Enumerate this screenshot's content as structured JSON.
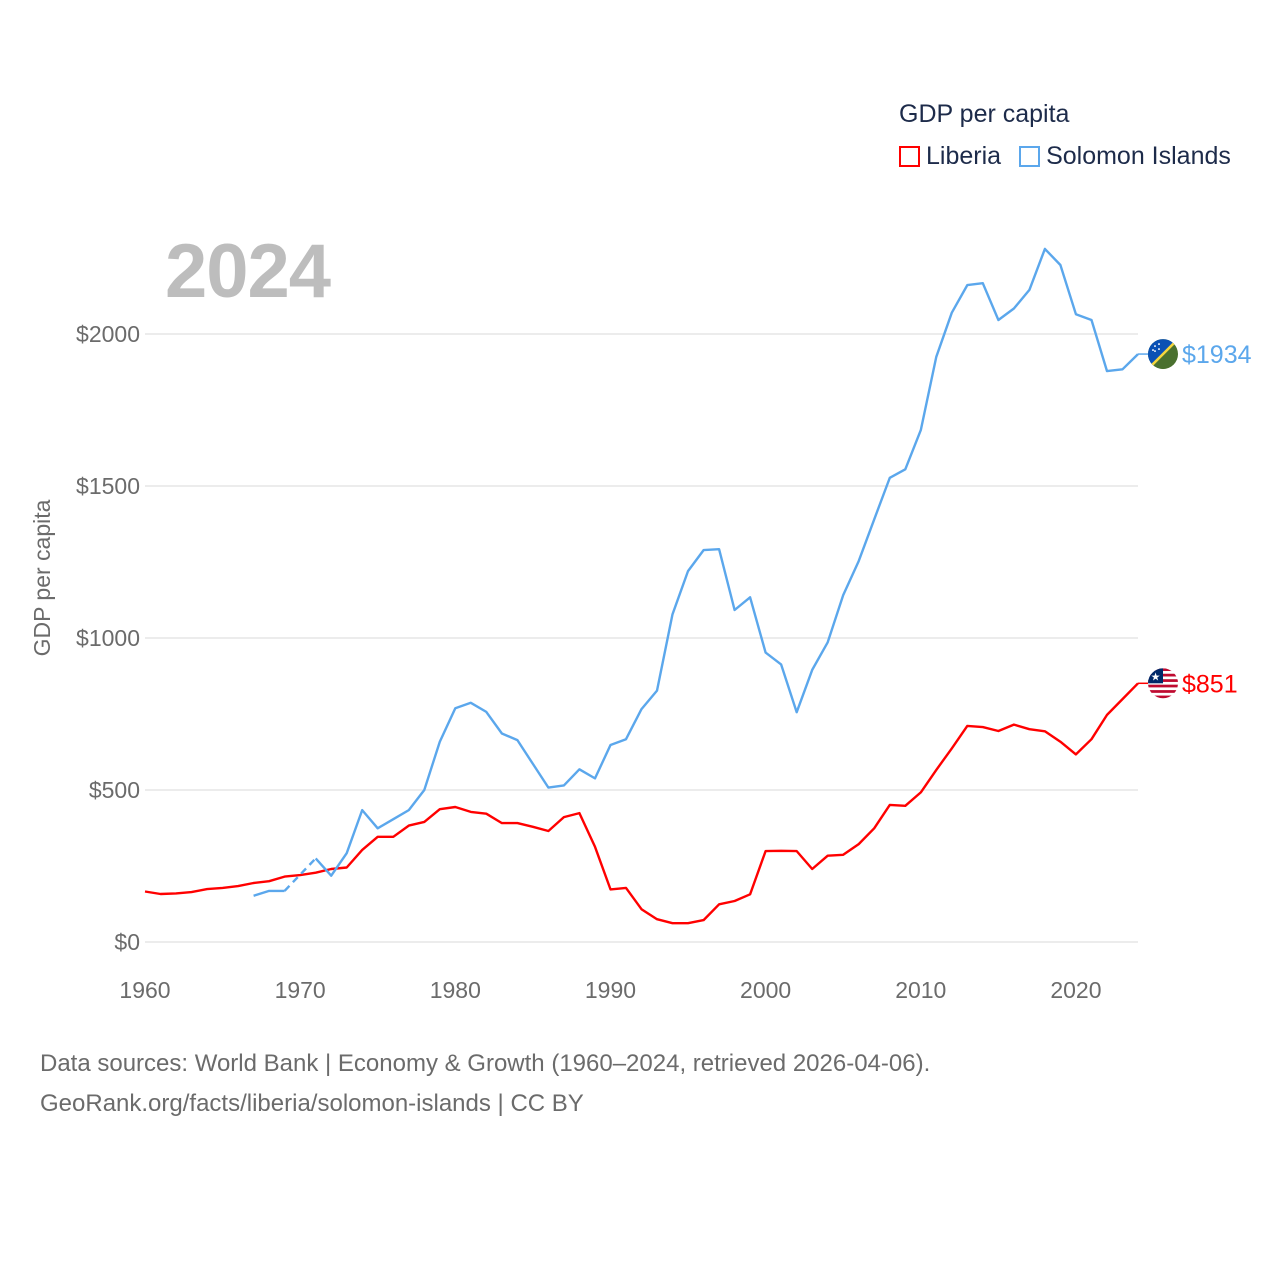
{
  "chart_data": {
    "type": "line",
    "title": "GDP per capita",
    "ylabel": "GDP per capita",
    "xlabel": "",
    "xlim": [
      1960,
      2024
    ],
    "ylim": [
      0,
      2000
    ],
    "grid": true,
    "legend_placement": "top-right",
    "x_ticks": [
      1960,
      1970,
      1980,
      1990,
      2000,
      2010,
      2020
    ],
    "x_tick_labels": [
      "1960",
      "1970",
      "1980",
      "1990",
      "2000",
      "2010",
      "2020"
    ],
    "y_ticks": [
      0,
      500,
      1000,
      1500,
      2000
    ],
    "y_tick_labels": [
      "$0",
      "$500",
      "$1000",
      "$1500",
      "$2000"
    ],
    "x": [
      1960,
      1961,
      1962,
      1963,
      1964,
      1965,
      1966,
      1967,
      1968,
      1969,
      1970,
      1971,
      1972,
      1973,
      1974,
      1975,
      1976,
      1977,
      1978,
      1979,
      1980,
      1981,
      1982,
      1983,
      1984,
      1985,
      1986,
      1987,
      1988,
      1989,
      1990,
      1991,
      1992,
      1993,
      1994,
      1995,
      1996,
      1997,
      1998,
      1999,
      2000,
      2001,
      2002,
      2003,
      2004,
      2005,
      2006,
      2007,
      2008,
      2009,
      2010,
      2011,
      2012,
      2013,
      2014,
      2015,
      2016,
      2017,
      2018,
      2019,
      2020,
      2021,
      2022,
      2023,
      2024
    ],
    "series": [
      {
        "name": "Liberia",
        "color": "#ff0000",
        "end_label": "$851",
        "values": [
          166,
          158,
          160,
          164,
          174,
          178,
          184,
          194,
          200,
          215,
          220,
          228,
          240,
          245,
          303,
          346,
          346,
          383,
          395,
          437,
          444,
          428,
          422,
          391,
          391,
          379,
          365,
          411,
          424,
          313,
          173,
          178,
          108,
          75,
          62,
          62,
          72,
          124,
          135,
          157,
          299,
          300,
          299,
          240,
          284,
          287,
          322,
          374,
          451,
          448,
          492,
          566,
          637,
          711,
          707,
          694,
          715,
          700,
          693,
          659,
          617,
          667,
          747,
          799,
          851
        ]
      },
      {
        "name": "Solomon Islands",
        "color": "#5ba7ec",
        "end_label": "$1934",
        "values": [
          null,
          null,
          null,
          null,
          null,
          null,
          null,
          152,
          168,
          168,
          null,
          275,
          218,
          292,
          434,
          374,
          404,
          434,
          500,
          659,
          769,
          787,
          757,
          686,
          664,
          586,
          508,
          515,
          568,
          538,
          648,
          667,
          766,
          827,
          1078,
          1220,
          1289,
          1292,
          1092,
          1134,
          952,
          913,
          756,
          895,
          986,
          1141,
          1253,
          1390,
          1527,
          1555,
          1684,
          1925,
          2070,
          2161,
          2167,
          2046,
          2084,
          2145,
          2280,
          2227,
          2065,
          2046,
          1878,
          1884,
          1934
        ]
      }
    ],
    "current_year": "2024"
  },
  "legend": {
    "title": "GDP per capita",
    "items": [
      {
        "label": "Liberia",
        "color": "#ff0000"
      },
      {
        "label": "Solomon Islands",
        "color": "#5ba7ec"
      }
    ]
  },
  "footer": {
    "line1": "Data sources: World Bank | Economy & Growth (1960–2024, retrieved 2026-04-06).",
    "line2": "GeoRank.org/facts/liberia/solomon-islands | CC BY"
  }
}
